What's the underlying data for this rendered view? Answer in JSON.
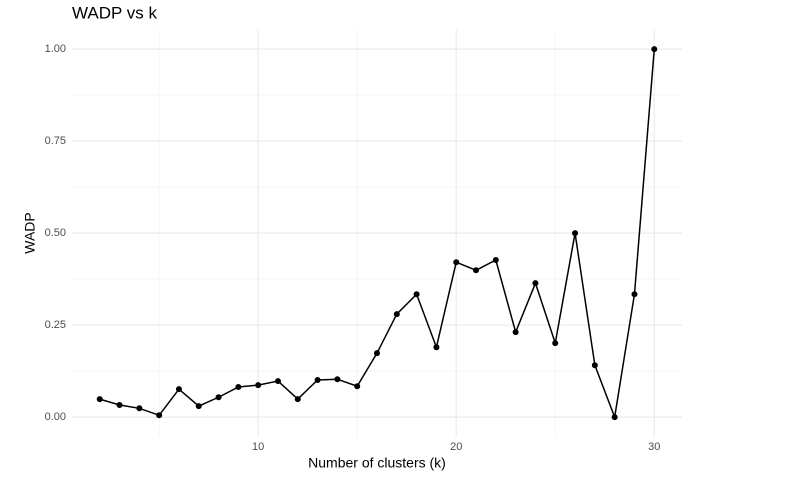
{
  "chart_data": {
    "type": "line",
    "title": "WADP vs k",
    "x_label": "Number of clusters (k)",
    "y_label": "WADP",
    "x": [
      2,
      3,
      4,
      5,
      6,
      7,
      8,
      9,
      10,
      11,
      12,
      13,
      14,
      15,
      16,
      17,
      18,
      19,
      20,
      21,
      22,
      23,
      24,
      25,
      26,
      27,
      28,
      29,
      30
    ],
    "series": [
      {
        "name": "WADP",
        "color": "#000000",
        "values": [
          0.049,
          0.033,
          0.024,
          0.005,
          0.076,
          0.03,
          0.054,
          0.082,
          0.087,
          0.098,
          0.049,
          0.101,
          0.103,
          0.084,
          0.174,
          0.28,
          0.334,
          0.19,
          0.421,
          0.399,
          0.427,
          0.231,
          0.364,
          0.201,
          0.5,
          0.141,
          0,
          0.334,
          1.0
        ]
      }
    ],
    "xlim": [
      0.6,
      31.4
    ],
    "ylim": [
      -0.054,
      1.052
    ],
    "xticks": [
      10,
      20,
      30
    ],
    "yticks": [
      {
        "value": 0,
        "label": "0.00"
      },
      {
        "value": 0.25,
        "label": "0.25"
      },
      {
        "value": 0.5,
        "label": "0.50"
      },
      {
        "value": 0.75,
        "label": "0.75"
      },
      {
        "value": 1,
        "label": "1.00"
      }
    ],
    "x_minor_ticks": [
      5,
      15,
      25
    ],
    "y_minor_ticks": [
      0.125,
      0.375,
      0.625,
      0.875
    ],
    "grid": true
  }
}
